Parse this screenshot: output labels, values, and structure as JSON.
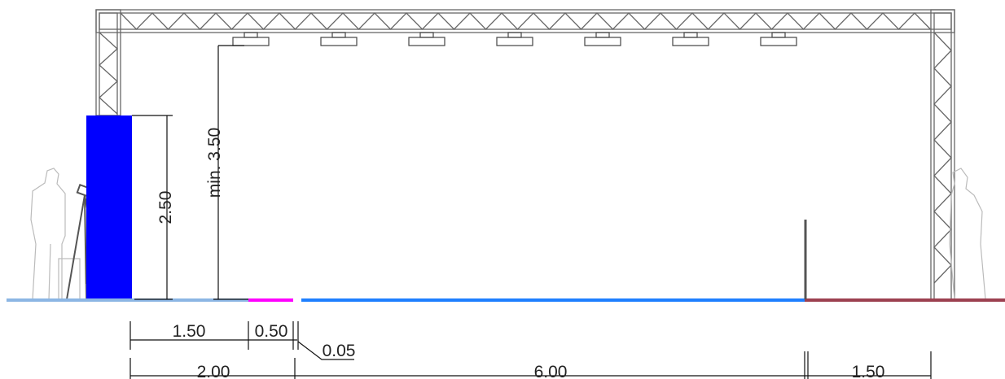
{
  "dimensions": {
    "clear_height": "min. 3.50",
    "wall_height": "2.50",
    "row1": [
      "1.50",
      "0.50",
      "0.05"
    ],
    "row2": [
      "2.00",
      "6.00",
      "1.50"
    ]
  }
}
